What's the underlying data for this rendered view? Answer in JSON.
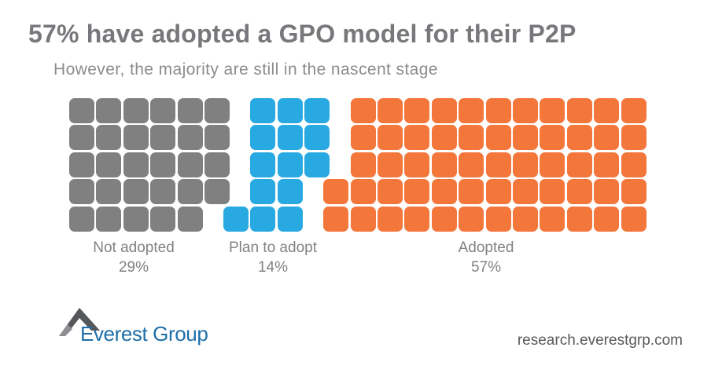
{
  "header": {
    "title": "57% have adopted a GPO model for their P2P",
    "subtitle": "However, the majority are still in the nascent stage"
  },
  "chart_data": {
    "type": "waffle",
    "total_units": 100,
    "unit_value_pct": 1,
    "grid_rows": 5,
    "fill_order": "column-major, top-to-bottom, left-to-right, groups separated by a small horizontal gap",
    "categories": [
      {
        "label": "Not adopted",
        "value_pct": 29,
        "pct_label": "29%",
        "units": 29,
        "color": "#808080",
        "columns": [
          [
            0,
            1,
            2,
            3,
            4
          ],
          [
            0,
            1,
            2,
            3,
            4
          ],
          [
            0,
            1,
            2,
            3,
            4
          ],
          [
            0,
            1,
            2,
            3,
            4
          ],
          [
            0,
            1,
            2,
            3,
            4
          ],
          [
            0,
            1,
            2,
            3
          ]
        ]
      },
      {
        "label": "Plan to adopt",
        "value_pct": 14,
        "pct_label": "14%",
        "units": 14,
        "color": "#29a9e1",
        "columns": [
          [
            4
          ],
          [
            0,
            1,
            2,
            3,
            4
          ],
          [
            0,
            1,
            2,
            3,
            4
          ],
          [
            0,
            1,
            2
          ]
        ]
      },
      {
        "label": "Adopted",
        "value_pct": 57,
        "pct_label": "57%",
        "units": 57,
        "color": "#f3763b",
        "columns": [
          [
            3,
            4
          ],
          [
            0,
            1,
            2,
            3,
            4
          ],
          [
            0,
            1,
            2,
            3,
            4
          ],
          [
            0,
            1,
            2,
            3,
            4
          ],
          [
            0,
            1,
            2,
            3,
            4
          ],
          [
            0,
            1,
            2,
            3,
            4
          ],
          [
            0,
            1,
            2,
            3,
            4
          ],
          [
            0,
            1,
            2,
            3,
            4
          ],
          [
            0,
            1,
            2,
            3,
            4
          ],
          [
            0,
            1,
            2,
            3,
            4
          ],
          [
            0,
            1,
            2,
            3,
            4
          ],
          [
            0,
            1,
            2,
            3,
            4
          ]
        ]
      }
    ]
  },
  "footer": {
    "logo_text": "Everest Group",
    "url": "research.everestgrp.com"
  },
  "icons": {
    "mountain_icon": "everest-mountain-peak"
  }
}
